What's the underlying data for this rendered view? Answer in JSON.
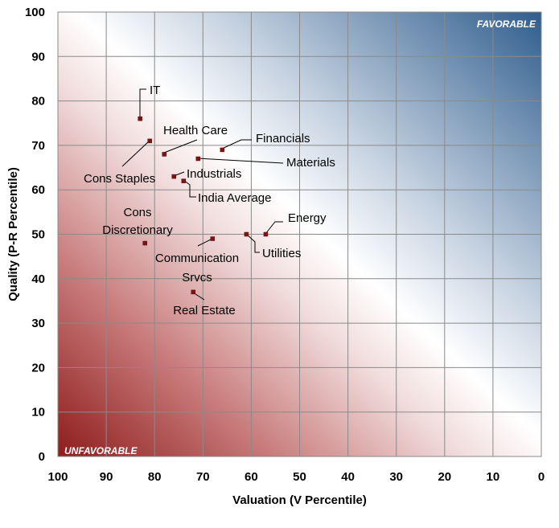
{
  "chart_data": {
    "type": "scatter",
    "xlabel": "Valuation (V Percentile)",
    "ylabel": "Quality (P-R Percentile)",
    "xlim": [
      100,
      0
    ],
    "ylim": [
      0,
      100
    ],
    "x_reversed": true,
    "x_ticks": [
      "100",
      "90",
      "80",
      "70",
      "60",
      "50",
      "40",
      "30",
      "20",
      "10",
      "0"
    ],
    "y_ticks": [
      "0",
      "10",
      "20",
      "30",
      "40",
      "50",
      "60",
      "70",
      "80",
      "90",
      "100"
    ],
    "grid": true,
    "background": "diagonal gradient from red (bottom-left) through white to blue (top-right)",
    "corner_labels": {
      "top_right": "FAVORABLE",
      "bottom_left": "UNFAVORABLE"
    },
    "colors": {
      "unfavorable": "#8b1a1a",
      "favorable": "#2e5a8a",
      "marker": "#7b1515"
    },
    "points": [
      {
        "label": "IT",
        "x": 83,
        "y": 76
      },
      {
        "label": "Health Care",
        "x": 78,
        "y": 68
      },
      {
        "label": "Financials",
        "x": 66,
        "y": 69
      },
      {
        "label": "Cons Staples",
        "x": 81,
        "y": 71
      },
      {
        "label": "Materials",
        "x": 71,
        "y": 67
      },
      {
        "label": "Industrials",
        "x": 76,
        "y": 63
      },
      {
        "label": "India Average",
        "x": 74,
        "y": 62
      },
      {
        "label": "Energy",
        "x": 57,
        "y": 50
      },
      {
        "label": "Utilities",
        "x": 61,
        "y": 50
      },
      {
        "label": "Cons Discretionary",
        "x": 82,
        "y": 48
      },
      {
        "label": "Communication Srvcs",
        "x": 68,
        "y": 49
      },
      {
        "label": "Real Estate",
        "x": 72,
        "y": 37
      }
    ]
  }
}
